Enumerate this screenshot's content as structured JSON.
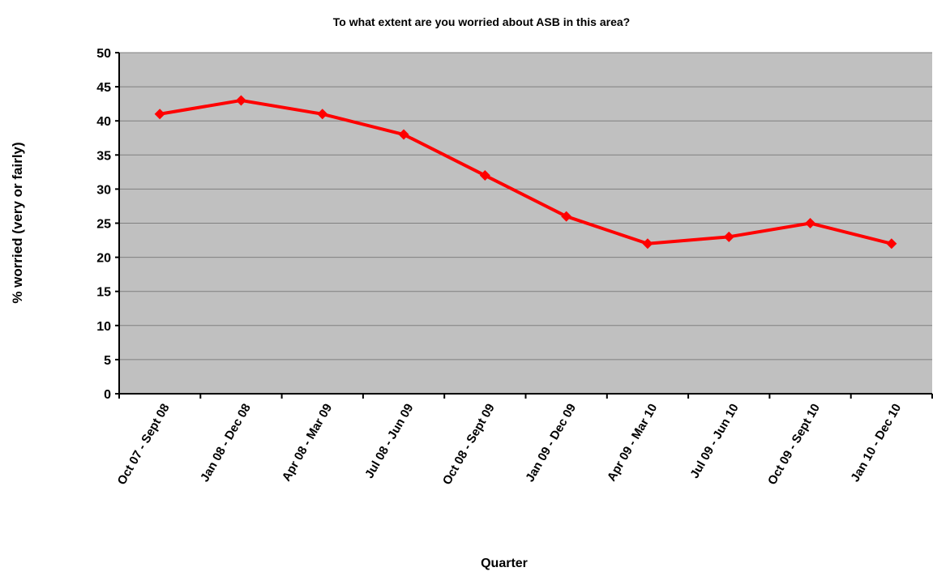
{
  "chart_data": {
    "type": "line",
    "title": "To what extent are you worried about ASB in this area?",
    "xlabel": "Quarter",
    "ylabel": "% worried (very or fairly)",
    "ylim": [
      0,
      50
    ],
    "yticks": [
      0,
      5,
      10,
      15,
      20,
      25,
      30,
      35,
      40,
      45,
      50
    ],
    "grid": true,
    "legend": "none",
    "categories": [
      "Oct 07 - Sept 08",
      "Jan 08 - Dec 08",
      "Apr 08 - Mar 09",
      "Jul 08 - Jun 09",
      "Oct 08 - Sept 09",
      "Jan 09 - Dec 09",
      "Apr 09 - Mar 10",
      "Jul 09 - Jun 10",
      "Oct 09 - Sept 10",
      "Jan 10 - Dec 10"
    ],
    "series": [
      {
        "values": [
          41,
          43,
          41,
          38,
          32,
          26,
          22,
          23,
          25,
          22
        ]
      }
    ],
    "colors": {
      "plot_background": "#c0c0c0",
      "line": "#ff0000",
      "gridline": "#808080",
      "axis": "#000000"
    }
  }
}
